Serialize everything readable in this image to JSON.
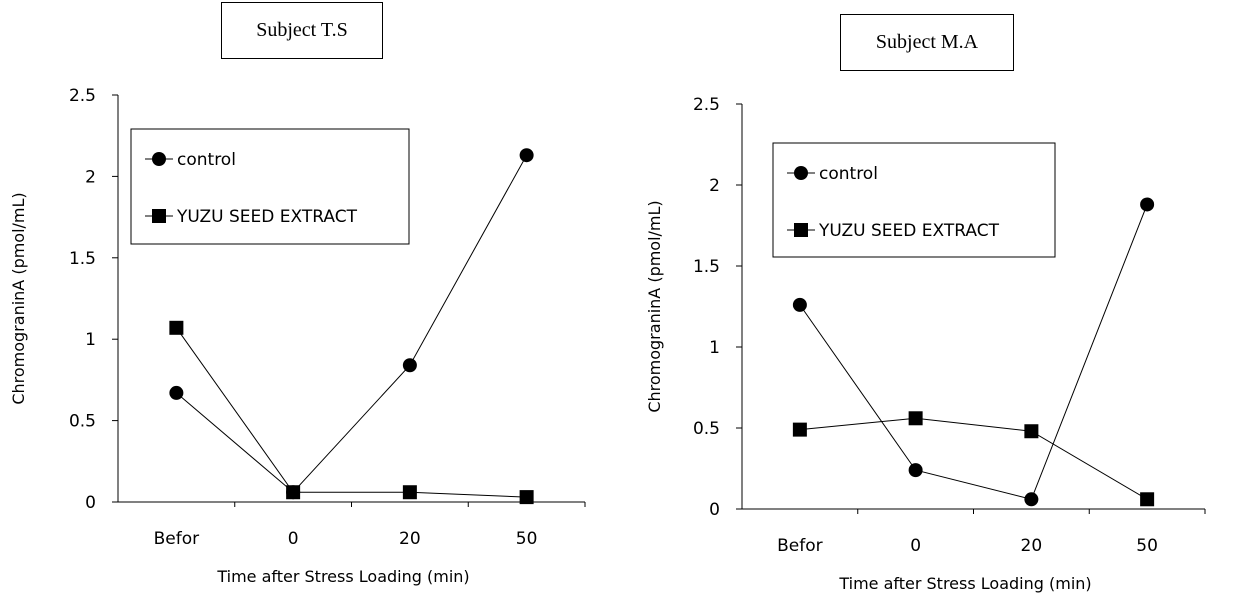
{
  "chart_data": [
    {
      "type": "line",
      "title": "Subject T.S",
      "xlabel": "Time after Stress Loading (min)",
      "ylabel": "ChromograninA (pmol/mL)",
      "categories": [
        "Befor",
        "0",
        "20",
        "50"
      ],
      "ylim": [
        0,
        2.5
      ],
      "yticks": [
        "0",
        "0.5",
        "1",
        "1.5",
        "2",
        "2.5"
      ],
      "grid": false,
      "legend": "top-left",
      "series": [
        {
          "name": "control",
          "marker": "circle",
          "values": [
            0.67,
            0.06,
            0.84,
            2.13
          ]
        },
        {
          "name": "YUZU SEED EXTRACT",
          "marker": "square",
          "values": [
            1.07,
            0.06,
            0.06,
            0.03
          ]
        }
      ]
    },
    {
      "type": "line",
      "title": "Subject M.A",
      "xlabel": "Time after Stress Loading (min)",
      "ylabel": "ChromograninA (pmol/mL)",
      "categories": [
        "Befor",
        "0",
        "20",
        "50"
      ],
      "ylim": [
        0,
        2.5
      ],
      "yticks": [
        "0",
        "0.5",
        "1",
        "1.5",
        "2",
        "2.5"
      ],
      "grid": false,
      "legend": "top-left",
      "series": [
        {
          "name": "control",
          "marker": "circle",
          "values": [
            1.26,
            0.24,
            0.06,
            1.88
          ]
        },
        {
          "name": "YUZU SEED EXTRACT",
          "marker": "square",
          "values": [
            0.49,
            0.56,
            0.48,
            0.06
          ]
        }
      ]
    }
  ]
}
